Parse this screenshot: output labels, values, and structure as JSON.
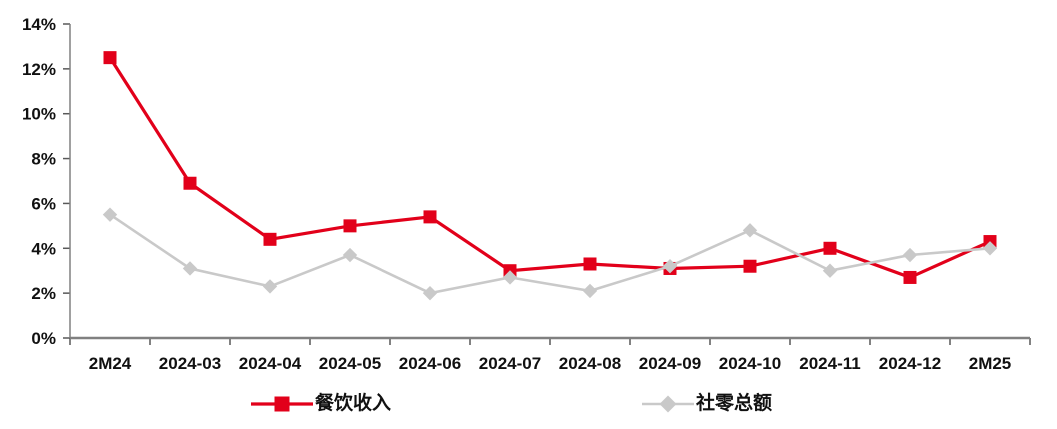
{
  "chart_data": {
    "type": "line",
    "title": "",
    "xlabel": "",
    "ylabel": "",
    "categories": [
      "2M24",
      "2024-03",
      "2024-04",
      "2024-05",
      "2024-06",
      "2024-07",
      "2024-08",
      "2024-09",
      "2024-10",
      "2024-11",
      "2024-12",
      "2M25"
    ],
    "series": [
      {
        "name": "餐饮收入",
        "color": "#e2001a",
        "marker": "square",
        "values": [
          12.5,
          6.9,
          4.4,
          5.0,
          5.4,
          3.0,
          3.3,
          3.1,
          3.2,
          4.0,
          2.7,
          4.3
        ]
      },
      {
        "name": "社零总额",
        "color": "#c9c9c9",
        "marker": "diamond",
        "values": [
          5.5,
          3.1,
          2.3,
          3.7,
          2.0,
          2.7,
          2.1,
          3.2,
          4.8,
          3.0,
          3.7,
          4.0
        ]
      }
    ],
    "ylim": [
      0,
      14
    ],
    "ytick_step": 2,
    "yticks": [
      "0%",
      "2%",
      "4%",
      "6%",
      "8%",
      "10%",
      "12%",
      "14%"
    ],
    "grid": false,
    "legend_position": "bottom",
    "axis_color": "#808080",
    "tick_color": "#595959"
  }
}
